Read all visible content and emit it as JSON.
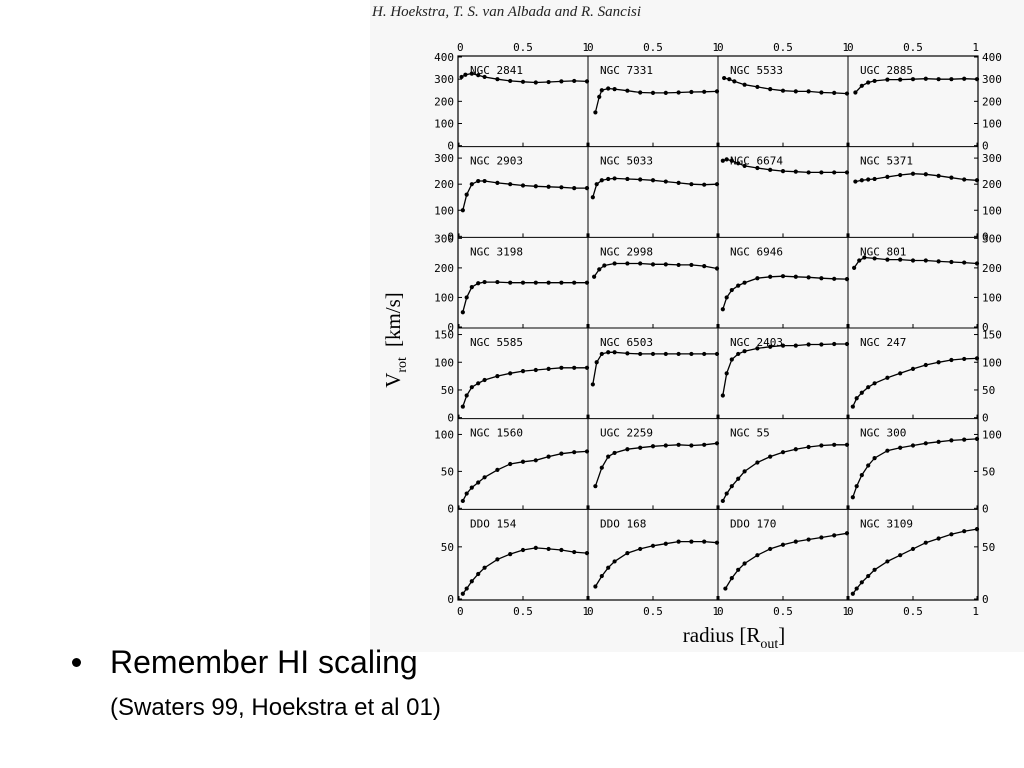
{
  "figure": {
    "author_line": "H. Hoekstra, T. S. van Albada and R. Sancisi"
  },
  "slide": {
    "bullet_text": "Remember HI scaling",
    "bullet_subtext": "(Swaters 99, Hoekstra et al 01)"
  },
  "chart_data": {
    "type": "line",
    "title": "",
    "xlabel": "radius [R",
    "xlabel_subscript": "out",
    "xlabel_close": "]",
    "ylabel": "V",
    "ylabel_subscript": "rot",
    "ylabel_units": "[km/s]",
    "xlim": [
      0,
      1
    ],
    "x_ticks": [
      "0",
      "0.5",
      "1"
    ],
    "grid": false,
    "legend": "none",
    "colors": {
      "curve": "#000000",
      "axis": "#000000",
      "background": "#f7f7f7"
    },
    "rows": [
      {
        "ylim": [
          0,
          400
        ],
        "y_ticks": [
          0,
          100,
          200,
          300,
          400
        ],
        "galaxies": [
          "NGC 2841",
          "NGC 7331",
          "NGC 5533",
          "UGC 2885"
        ]
      },
      {
        "ylim": [
          0,
          340
        ],
        "y_ticks": [
          0,
          100,
          200,
          300
        ],
        "galaxies": [
          "NGC 2903",
          "NGC 5033",
          "NGC 6674",
          "NGC 5371"
        ]
      },
      {
        "ylim": [
          0,
          300
        ],
        "y_ticks": [
          0,
          100,
          200,
          300
        ],
        "galaxies": [
          "NGC 3198",
          "NGC 2998",
          "NGC 6946",
          "NGC 801"
        ]
      },
      {
        "ylim": [
          0,
          160
        ],
        "y_ticks": [
          0,
          50,
          100,
          150
        ],
        "galaxies": [
          "NGC 5585",
          "NGC 6503",
          "NGC 2403",
          "NGC 247"
        ]
      },
      {
        "ylim": [
          0,
          120
        ],
        "y_ticks": [
          0,
          50,
          100
        ],
        "galaxies": [
          "NGC 1560",
          "UGC 2259",
          "NGC 55",
          "NGC 300"
        ]
      },
      {
        "ylim": [
          0,
          85
        ],
        "y_ticks": [
          0,
          50
        ],
        "galaxies": [
          "DDO 154",
          "DDO 168",
          "DDO 170",
          "NGC 3109"
        ]
      }
    ],
    "panels": {
      "NGC 2841": {
        "x": [
          0.02,
          0.05,
          0.1,
          0.15,
          0.2,
          0.3,
          0.4,
          0.5,
          0.6,
          0.7,
          0.8,
          0.9,
          1.0
        ],
        "v": [
          310,
          320,
          325,
          318,
          310,
          300,
          292,
          288,
          285,
          287,
          290,
          292,
          290
        ]
      },
      "NGC 7331": {
        "x": [
          0.05,
          0.08,
          0.1,
          0.15,
          0.2,
          0.3,
          0.4,
          0.5,
          0.6,
          0.7,
          0.8,
          0.9,
          1.0
        ],
        "v": [
          150,
          220,
          250,
          258,
          255,
          248,
          240,
          238,
          238,
          240,
          242,
          243,
          245
        ]
      },
      "NGC 5533": {
        "x": [
          0.04,
          0.08,
          0.12,
          0.2,
          0.3,
          0.4,
          0.5,
          0.6,
          0.7,
          0.8,
          0.9,
          1.0
        ],
        "v": [
          305,
          300,
          290,
          275,
          265,
          255,
          248,
          245,
          245,
          240,
          238,
          235
        ]
      },
      "UGC 2885": {
        "x": [
          0.05,
          0.1,
          0.15,
          0.2,
          0.3,
          0.4,
          0.5,
          0.6,
          0.7,
          0.8,
          0.9,
          1.0
        ],
        "v": [
          240,
          270,
          285,
          292,
          298,
          298,
          300,
          302,
          300,
          300,
          302,
          300
        ]
      },
      "NGC 2903": {
        "x": [
          0.03,
          0.06,
          0.1,
          0.15,
          0.2,
          0.3,
          0.4,
          0.5,
          0.6,
          0.7,
          0.8,
          0.9,
          1.0
        ],
        "v": [
          100,
          160,
          200,
          212,
          212,
          205,
          200,
          195,
          192,
          190,
          188,
          185,
          185
        ]
      },
      "NGC 5033": {
        "x": [
          0.03,
          0.06,
          0.1,
          0.15,
          0.2,
          0.3,
          0.4,
          0.5,
          0.6,
          0.7,
          0.8,
          0.9,
          1.0
        ],
        "v": [
          150,
          200,
          215,
          220,
          222,
          220,
          218,
          215,
          210,
          205,
          200,
          198,
          200
        ]
      },
      "NGC 6674": {
        "x": [
          0.03,
          0.06,
          0.1,
          0.15,
          0.2,
          0.3,
          0.4,
          0.5,
          0.6,
          0.7,
          0.8,
          0.9,
          1.0
        ],
        "v": [
          290,
          295,
          290,
          280,
          270,
          262,
          255,
          250,
          248,
          245,
          245,
          245,
          245
        ]
      },
      "NGC 5371": {
        "x": [
          0.05,
          0.1,
          0.15,
          0.2,
          0.3,
          0.4,
          0.5,
          0.6,
          0.7,
          0.8,
          0.9,
          1.0
        ],
        "v": [
          210,
          215,
          218,
          220,
          228,
          235,
          240,
          238,
          232,
          225,
          218,
          215
        ]
      },
      "NGC 3198": {
        "x": [
          0.03,
          0.06,
          0.1,
          0.15,
          0.2,
          0.3,
          0.4,
          0.5,
          0.6,
          0.7,
          0.8,
          0.9,
          1.0
        ],
        "v": [
          50,
          100,
          135,
          148,
          152,
          152,
          150,
          150,
          150,
          150,
          150,
          150,
          150
        ]
      },
      "NGC 2998": {
        "x": [
          0.04,
          0.08,
          0.12,
          0.2,
          0.3,
          0.4,
          0.5,
          0.6,
          0.7,
          0.8,
          0.9,
          1.0
        ],
        "v": [
          170,
          195,
          208,
          215,
          215,
          215,
          212,
          212,
          210,
          210,
          206,
          198
        ]
      },
      "NGC 6946": {
        "x": [
          0.03,
          0.06,
          0.1,
          0.15,
          0.2,
          0.3,
          0.4,
          0.5,
          0.6,
          0.7,
          0.8,
          0.9,
          1.0
        ],
        "v": [
          60,
          100,
          125,
          140,
          150,
          165,
          170,
          172,
          170,
          168,
          165,
          163,
          162
        ]
      },
      "NGC 801": {
        "x": [
          0.04,
          0.08,
          0.12,
          0.2,
          0.3,
          0.4,
          0.5,
          0.6,
          0.7,
          0.8,
          0.9,
          1.0
        ],
        "v": [
          200,
          225,
          235,
          232,
          228,
          228,
          225,
          225,
          222,
          220,
          218,
          215
        ]
      },
      "NGC 5585": {
        "x": [
          0.03,
          0.06,
          0.1,
          0.15,
          0.2,
          0.3,
          0.4,
          0.5,
          0.6,
          0.7,
          0.8,
          0.9,
          1.0
        ],
        "v": [
          20,
          40,
          55,
          62,
          68,
          75,
          80,
          84,
          86,
          88,
          90,
          90,
          90
        ]
      },
      "NGC 6503": {
        "x": [
          0.03,
          0.06,
          0.1,
          0.15,
          0.2,
          0.3,
          0.4,
          0.5,
          0.6,
          0.7,
          0.8,
          0.9,
          1.0
        ],
        "v": [
          60,
          100,
          115,
          118,
          118,
          116,
          115,
          115,
          115,
          115,
          115,
          115,
          115
        ]
      },
      "NGC 2403": {
        "x": [
          0.03,
          0.06,
          0.1,
          0.15,
          0.2,
          0.3,
          0.4,
          0.5,
          0.6,
          0.7,
          0.8,
          0.9,
          1.0
        ],
        "v": [
          40,
          80,
          105,
          115,
          120,
          125,
          128,
          130,
          130,
          132,
          132,
          133,
          133
        ]
      },
      "NGC 247": {
        "x": [
          0.03,
          0.06,
          0.1,
          0.15,
          0.2,
          0.3,
          0.4,
          0.5,
          0.6,
          0.7,
          0.8,
          0.9,
          1.0
        ],
        "v": [
          20,
          35,
          45,
          55,
          62,
          72,
          80,
          88,
          95,
          100,
          104,
          106,
          107
        ]
      },
      "NGC 1560": {
        "x": [
          0.03,
          0.06,
          0.1,
          0.15,
          0.2,
          0.3,
          0.4,
          0.5,
          0.6,
          0.7,
          0.8,
          0.9,
          1.0
        ],
        "v": [
          10,
          20,
          28,
          35,
          42,
          52,
          60,
          63,
          65,
          70,
          74,
          76,
          77
        ]
      },
      "UGC 2259": {
        "x": [
          0.05,
          0.1,
          0.15,
          0.2,
          0.3,
          0.4,
          0.5,
          0.6,
          0.7,
          0.8,
          0.9,
          1.0
        ],
        "v": [
          30,
          55,
          70,
          75,
          80,
          82,
          84,
          85,
          86,
          85,
          86,
          88
        ]
      },
      "NGC 55": {
        "x": [
          0.03,
          0.06,
          0.1,
          0.15,
          0.2,
          0.3,
          0.4,
          0.5,
          0.6,
          0.7,
          0.8,
          0.9,
          1.0
        ],
        "v": [
          10,
          20,
          30,
          40,
          50,
          62,
          70,
          76,
          80,
          83,
          85,
          86,
          86
        ]
      },
      "NGC 300": {
        "x": [
          0.03,
          0.06,
          0.1,
          0.15,
          0.2,
          0.3,
          0.4,
          0.5,
          0.6,
          0.7,
          0.8,
          0.9,
          1.0
        ],
        "v": [
          15,
          30,
          45,
          58,
          68,
          78,
          82,
          85,
          88,
          90,
          92,
          93,
          94
        ]
      },
      "DDO 154": {
        "x": [
          0.03,
          0.06,
          0.1,
          0.15,
          0.2,
          0.3,
          0.4,
          0.5,
          0.6,
          0.7,
          0.8,
          0.9,
          1.0
        ],
        "v": [
          5,
          10,
          17,
          24,
          30,
          38,
          43,
          47,
          49,
          48,
          47,
          45,
          44
        ]
      },
      "DDO 168": {
        "x": [
          0.05,
          0.1,
          0.15,
          0.2,
          0.3,
          0.4,
          0.5,
          0.6,
          0.7,
          0.8,
          0.9,
          1.0
        ],
        "v": [
          12,
          22,
          30,
          36,
          44,
          48,
          51,
          53,
          55,
          55,
          55,
          54
        ]
      },
      "DDO 170": {
        "x": [
          0.05,
          0.1,
          0.15,
          0.2,
          0.3,
          0.4,
          0.5,
          0.6,
          0.7,
          0.8,
          0.9,
          1.0
        ],
        "v": [
          10,
          20,
          28,
          34,
          42,
          48,
          52,
          55,
          57,
          59,
          61,
          63
        ]
      },
      "NGC 3109": {
        "x": [
          0.03,
          0.06,
          0.1,
          0.15,
          0.2,
          0.3,
          0.4,
          0.5,
          0.6,
          0.7,
          0.8,
          0.9,
          1.0
        ],
        "v": [
          5,
          10,
          16,
          22,
          28,
          36,
          42,
          48,
          54,
          58,
          62,
          65,
          67
        ]
      }
    }
  }
}
